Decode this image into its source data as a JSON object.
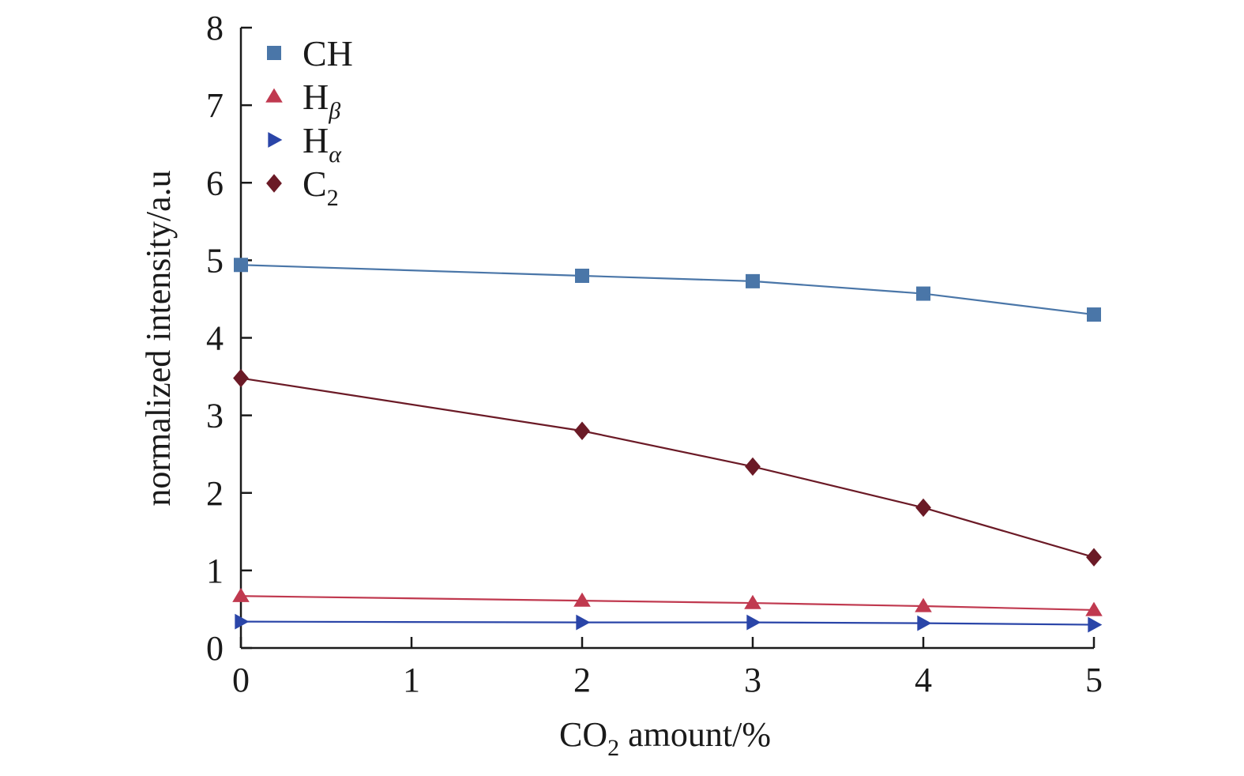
{
  "chart_data": {
    "type": "line",
    "x": [
      0,
      2,
      3,
      4,
      5
    ],
    "xlabel": {
      "main": "CO",
      "sub": "2",
      "rest": " amount/%"
    },
    "ylabel": "normalized intensity/a.u",
    "xlim": [
      0,
      5
    ],
    "ylim": [
      0,
      8
    ],
    "xticks": [
      "0",
      "1",
      "2",
      "3",
      "4",
      "5"
    ],
    "yticks": [
      "0",
      "1",
      "2",
      "3",
      "4",
      "5",
      "6",
      "7",
      "8"
    ],
    "grid": false,
    "legend_position": "top-left",
    "series": [
      {
        "key": "ch",
        "name": "CH",
        "label_main": "CH",
        "label_sub": "",
        "marker": "square",
        "color": "#4a76a8",
        "values": [
          4.94,
          4.8,
          4.73,
          4.57,
          4.3
        ]
      },
      {
        "key": "hbeta",
        "name": "Hβ",
        "label_main": "H",
        "label_sub": "β",
        "marker": "triangle-up",
        "color": "#c0394f",
        "values": [
          0.67,
          0.61,
          0.58,
          0.54,
          0.49
        ]
      },
      {
        "key": "halpha",
        "name": "Hα",
        "label_main": "H",
        "label_sub": "α",
        "marker": "triangle-right",
        "color": "#2a45a8",
        "values": [
          0.34,
          0.33,
          0.33,
          0.32,
          0.3
        ]
      },
      {
        "key": "c2",
        "name": "C2",
        "label_main": "C",
        "label_sub": "2",
        "marker": "diamond",
        "color": "#6b1a26",
        "values": [
          3.48,
          2.8,
          2.34,
          1.81,
          1.17
        ]
      }
    ]
  }
}
